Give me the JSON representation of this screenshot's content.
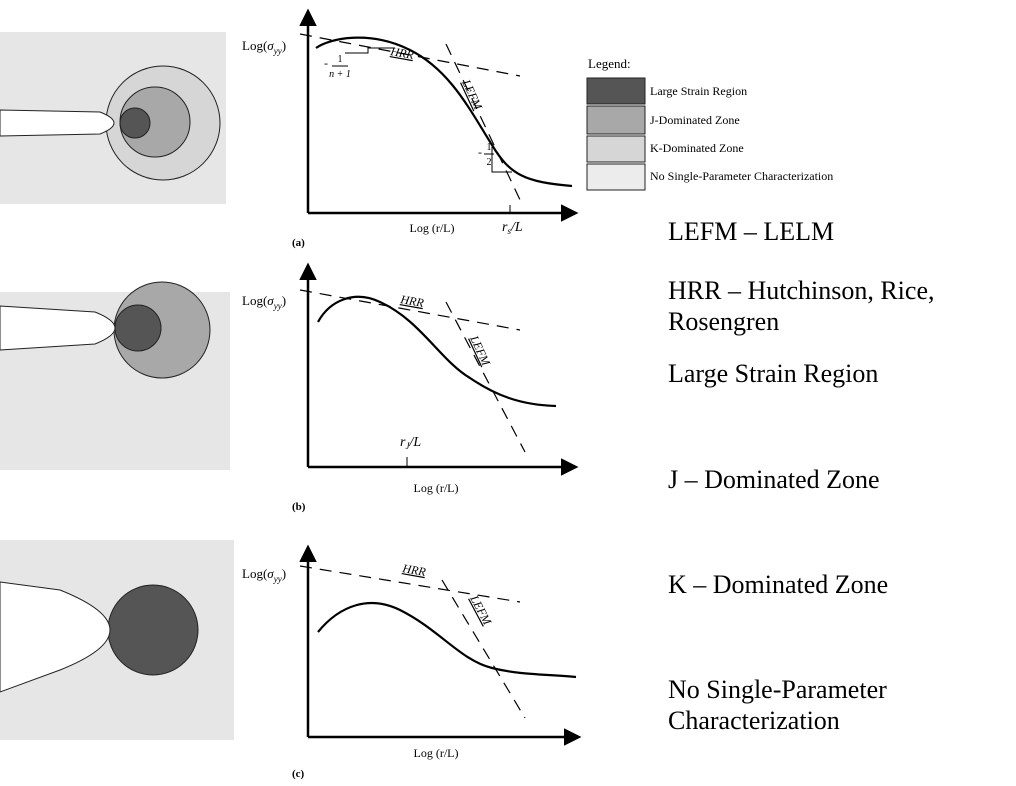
{
  "panels": [
    {
      "label": "(a)",
      "y_axis": {
        "prefix": "Log(",
        "symbol": "σ",
        "subscript": "yy",
        "suffix": ")"
      },
      "x_axis": "Log (r/L)",
      "curve_labels": [
        "HRR",
        "LEFM"
      ],
      "slopes": [
        {
          "sign": "-",
          "numerator": "1",
          "denominator": "n + 1"
        },
        {
          "sign": "-",
          "numerator": "1",
          "denominator": "2"
        }
      ],
      "x_marker": {
        "main": "r",
        "sub": "s",
        "rest": "/L"
      }
    },
    {
      "label": "(b)",
      "y_axis": {
        "prefix": "Log(",
        "symbol": "σ",
        "subscript": "yy",
        "suffix": ")"
      },
      "x_axis": "Log (r/L)",
      "curve_labels": [
        "HRR",
        "LEFM"
      ],
      "x_marker": {
        "main": "r",
        "sub": "J",
        "rest": "/L"
      }
    },
    {
      "label": "(c)",
      "y_axis": {
        "prefix": "Log(",
        "symbol": "σ",
        "subscript": "yy",
        "suffix": ")"
      },
      "x_axis": "Log (r/L)",
      "curve_labels": [
        "HRR",
        "LEFM"
      ]
    }
  ],
  "legend": {
    "title": "Legend:",
    "items": [
      "Large Strain Region",
      "J-Dominated Zone",
      "K-Dominated Zone",
      "No Single-Parameter Characterization"
    ]
  },
  "notes": [
    "LEFM – LELM",
    "HRR – Hutchinson, Rice,",
    "Rosengren",
    "Large Strain Region",
    "J – Dominated Zone",
    "K – Dominated Zone",
    "No Single-Parameter",
    "Characterization"
  ]
}
